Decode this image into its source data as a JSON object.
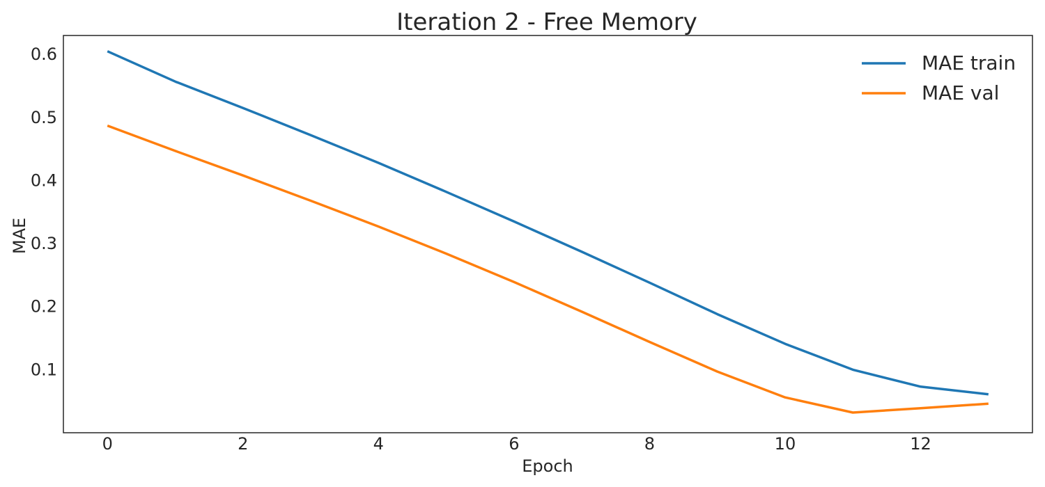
{
  "chart_data": {
    "type": "line",
    "title": "Iteration 2 - Free Memory",
    "xlabel": "Epoch",
    "ylabel": "MAE",
    "xlim": [
      -0.65,
      13.65
    ],
    "ylim": [
      0.0,
      0.63
    ],
    "xticks": [
      0,
      2,
      4,
      6,
      8,
      10,
      12
    ],
    "xtick_labels": [
      "0",
      "2",
      "4",
      "6",
      "8",
      "10",
      "12"
    ],
    "yticks": [
      0.1,
      0.2,
      0.3,
      0.4,
      0.5,
      0.6
    ],
    "ytick_labels": [
      "0.1",
      "0.2",
      "0.3",
      "0.4",
      "0.5",
      "0.6"
    ],
    "grid": false,
    "legend_position": "top-right",
    "x": [
      0,
      1,
      2,
      3,
      4,
      5,
      6,
      7,
      8,
      9,
      10,
      11,
      12,
      13
    ],
    "series": [
      {
        "name": "MAE train",
        "color": "#1f77b4",
        "values": [
          0.605,
          0.557,
          0.515,
          0.472,
          0.428,
          0.382,
          0.335,
          0.287,
          0.238,
          0.188,
          0.141,
          0.1,
          0.073,
          0.061
        ]
      },
      {
        "name": "MAE val",
        "color": "#ff7f0e",
        "values": [
          0.487,
          0.447,
          0.408,
          0.368,
          0.327,
          0.284,
          0.239,
          0.192,
          0.144,
          0.097,
          0.056,
          0.032,
          0.039,
          0.046
        ]
      }
    ]
  }
}
